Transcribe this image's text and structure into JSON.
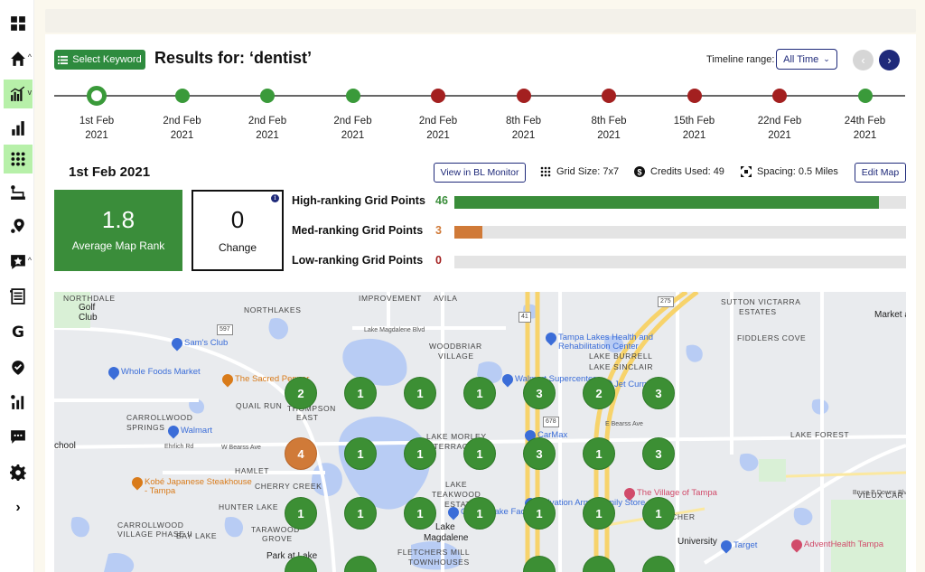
{
  "results": {
    "select_keyword_label": "Select Keyword",
    "title": "Results for: ‘dentist’"
  },
  "timeline": {
    "range_label": "Timeline range:",
    "range_value": "All Time",
    "prev_label": "‹",
    "next_label": "›",
    "points": [
      {
        "date": "1st Feb",
        "year": "2021",
        "status": "selected"
      },
      {
        "date": "2nd Feb",
        "year": "2021",
        "status": "green"
      },
      {
        "date": "2nd Feb",
        "year": "2021",
        "status": "green"
      },
      {
        "date": "2nd Feb",
        "year": "2021",
        "status": "green"
      },
      {
        "date": "2nd Feb",
        "year": "2021",
        "status": "red"
      },
      {
        "date": "8th Feb",
        "year": "2021",
        "status": "red"
      },
      {
        "date": "8th Feb",
        "year": "2021",
        "status": "red"
      },
      {
        "date": "15th Feb",
        "year": "2021",
        "status": "red"
      },
      {
        "date": "22nd Feb",
        "year": "2021",
        "status": "red"
      },
      {
        "date": "24th Feb",
        "year": "2021",
        "status": "green"
      }
    ]
  },
  "summary": {
    "date_heading": "1st Feb 2021",
    "view_monitor_label": "View in BL Monitor",
    "grid_size": "Grid Size: 7x7",
    "credits_used": "Credits Used: 49",
    "spacing": "Spacing: 0.5 Miles",
    "edit_map_label": "Edit Map",
    "average_rank": "1.8",
    "average_rank_label": "Average Map Rank",
    "change": "0",
    "change_label": "Change",
    "ranking_rows": [
      {
        "label": "High-ranking Grid Points",
        "count": "46",
        "fraction": 0.94,
        "color": "#3a8d3a"
      },
      {
        "label": "Med-ranking Grid Points",
        "count": "3",
        "fraction": 0.062,
        "color": "#d07a38"
      },
      {
        "label": "Low-ranking Grid Points",
        "count": "0",
        "fraction": 0,
        "color": "#a32020"
      }
    ]
  },
  "map": {
    "area_labels": [
      "NORTHDALE",
      "NORTHLAKES",
      "IMPROVEMENT",
      "AVILA",
      "SUTTON VICTARRA",
      "ESTATES",
      "WOODBRIAR",
      "VILLAGE",
      "FIDDLERS COVE",
      "LAKE BURRELL",
      "LAKE SINCLAIR",
      "CARROLLWOOD",
      "SPRINGS",
      "QUAIL RUN",
      "THOMPSON",
      "EAST",
      "LAKE MORLEY",
      "TERRACE",
      "LAKE FOREST",
      "HAMLET",
      "CHERRY CREEK",
      "LAKE",
      "TEAKWOOD",
      "ESTATES",
      "HUNTER LAKE",
      "CARROLLWOOD",
      "VILLAGE PHASE II",
      "TARAWOOD",
      "GROVE",
      "BAY LAKE",
      "Lake",
      "Magdalene",
      "FLETCHERS MILL",
      "TOWNHOUSES",
      "FLETCHER",
      "University",
      "VIEUX CAR",
      "Golf",
      "Club",
      "Market a",
      "Lake Magdalene Blvd",
      "W Bearss Ave",
      "E Bearss Ave",
      "Ehrlich Rd",
      "Bruce B Downs Blvd",
      "Park at Lake",
      "chool"
    ],
    "pois": [
      "Sam's Club",
      "Whole Foods Market",
      "The Sacred Pepper",
      "Walmart",
      "Kobé Japanese Steakhouse - Tampa",
      "Tampa Lakes Health and Rehabilitation Center",
      "Walmart Supercenter",
      "Cheesecake Factory",
      "CarMax",
      "The Village of Tampa",
      "Target",
      "AdventHealth Tampa",
      "Salvation Army Family Store",
      "Jet Curry"
    ],
    "road_shields": [
      "597",
      "41",
      "678",
      "275"
    ],
    "grid_rows": [
      [
        "2",
        "1",
        "1",
        "1",
        "3",
        "2",
        "3"
      ],
      [
        "4",
        "1",
        "1",
        "1",
        "3",
        "1",
        "3"
      ],
      [
        "1",
        "1",
        "1",
        "1",
        "1",
        "1",
        "1"
      ]
    ]
  }
}
